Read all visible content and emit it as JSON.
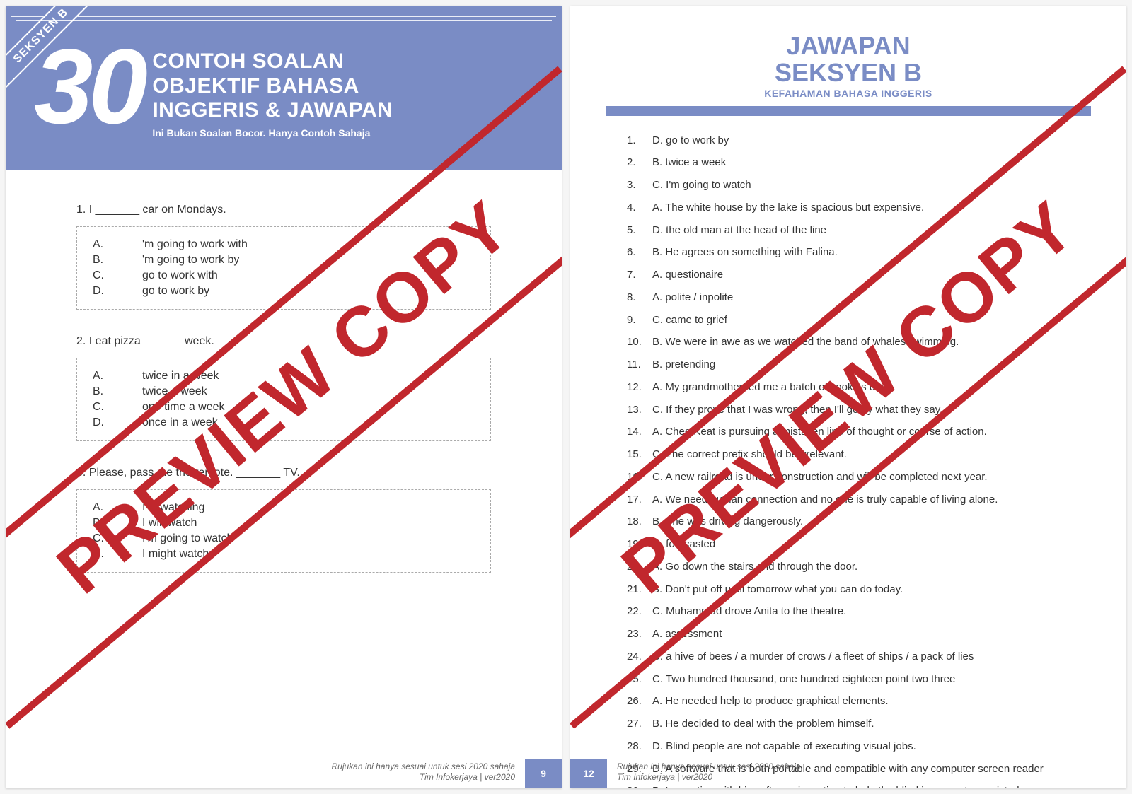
{
  "colors": {
    "brand_blue": "#7a8cc5",
    "watermark_red": "#c1272d",
    "text": "#333333",
    "footer_text": "#666666",
    "option_border": "#aaaaaa"
  },
  "watermark_text": "PREVIEW COPY",
  "left_page": {
    "corner_badge": "SEKSYEN B",
    "big_number": "30",
    "title_line1": "CONTOH SOALAN",
    "title_line2": "OBJEKTIF BAHASA",
    "title_line3": "INGGERIS & JAWAPAN",
    "subtitle": "Ini Bukan Soalan Bocor. Hanya Contoh Sahaja",
    "questions": [
      {
        "num": "1.",
        "text": "I _______ car on Mondays.",
        "options": [
          {
            "letter": "A.",
            "text": "'m going to work with"
          },
          {
            "letter": "B.",
            "text": "'m going to work by"
          },
          {
            "letter": "C.",
            "text": "go to work with"
          },
          {
            "letter": "D.",
            "text": "go to work by"
          }
        ]
      },
      {
        "num": "2.",
        "text": "I eat pizza ______ week.",
        "options": [
          {
            "letter": "A.",
            "text": "twice in a week"
          },
          {
            "letter": "B.",
            "text": "twice a week"
          },
          {
            "letter": "C.",
            "text": "one time a week"
          },
          {
            "letter": "D.",
            "text": "once in a week"
          }
        ]
      },
      {
        "num": "3.",
        "text": "Please, pass me the remote. _______ TV.",
        "options": [
          {
            "letter": "A.",
            "text": "I'm watching"
          },
          {
            "letter": "B.",
            "text": "I will watch"
          },
          {
            "letter": "C.",
            "text": "I'm going to watch"
          },
          {
            "letter": "D.",
            "text": "I might watch"
          }
        ]
      }
    ],
    "footer_note_line1": "Rujukan ini hanya sesuai untuk sesi 2020 sahaja",
    "footer_note_line2": "Tim Infokerjaya | ver2020",
    "page_number": "9"
  },
  "right_page": {
    "title_line1": "JAWAPAN",
    "title_line2": "SEKSYEN B",
    "subtitle": "KEFAHAMAN BAHASA INGGERIS",
    "answers": [
      {
        "num": "1.",
        "text": "D. go to work by"
      },
      {
        "num": "2.",
        "text": "B. twice a week"
      },
      {
        "num": "3.",
        "text": "C. I'm going to watch"
      },
      {
        "num": "4.",
        "text": "A. The white house by the lake is spacious but expensive."
      },
      {
        "num": "5.",
        "text": "D. the old man at the head of the line"
      },
      {
        "num": "6.",
        "text": "B. He agrees on something with Falina."
      },
      {
        "num": "7.",
        "text": "A. questionaire"
      },
      {
        "num": "8.",
        "text": "A. polite / inpolite"
      },
      {
        "num": "9.",
        "text": "C. came to grief"
      },
      {
        "num": "10.",
        "text": "B. We were in awe as we watched the band of whales swimming."
      },
      {
        "num": "11.",
        "text": "B. pretending"
      },
      {
        "num": "12.",
        "text": "A. My grandmother fed me a batch of cookies daily."
      },
      {
        "num": "13.",
        "text": "C. If they prove that I was wrong, then I'll go by what they say."
      },
      {
        "num": "14.",
        "text": "A. Chee Keat is pursuing a mistaken line of thought or course of action."
      },
      {
        "num": "15.",
        "text": "C. The correct prefix should be irrelevant."
      },
      {
        "num": "16.",
        "text": "C. A new railroad is under construction and will be completed next year."
      },
      {
        "num": "17.",
        "text": "A. We need human connection and no one is truly capable of living alone."
      },
      {
        "num": "18.",
        "text": "B. She was driving dangerously."
      },
      {
        "num": "19.",
        "text": "C. forecasted"
      },
      {
        "num": "20.",
        "text": "A. Go down the stairs and through the door."
      },
      {
        "num": "21.",
        "text": "B. Don't put off until tomorrow what you can do today."
      },
      {
        "num": "22.",
        "text": "C. Muhammad drove Anita to the theatre."
      },
      {
        "num": "23.",
        "text": "A. assessment"
      },
      {
        "num": "24.",
        "text": "C. a hive of bees / a murder of crows / a fleet of ships / a pack of lies"
      },
      {
        "num": "25.",
        "text": "C. Two hundred thousand, one hundred eighteen point two three"
      },
      {
        "num": "26.",
        "text": "A. He needed help to produce graphical elements."
      },
      {
        "num": "27.",
        "text": "B. He decided to deal with the problem himself."
      },
      {
        "num": "28.",
        "text": "D. Blind people are not capable of executing visual jobs."
      },
      {
        "num": "29.",
        "text": "D. A software that is both portable and compatible with any computer screen reader"
      },
      {
        "num": "30.",
        "text": "B. Innovative with his software invention to help the blind in computer-assisted drawing"
      }
    ],
    "footer_note_line1": "Rujukan ini hanya sesuai untuk sesi 2020 sahaja",
    "footer_note_line2": "Tim Infokerjaya | ver2020",
    "page_number": "12"
  }
}
